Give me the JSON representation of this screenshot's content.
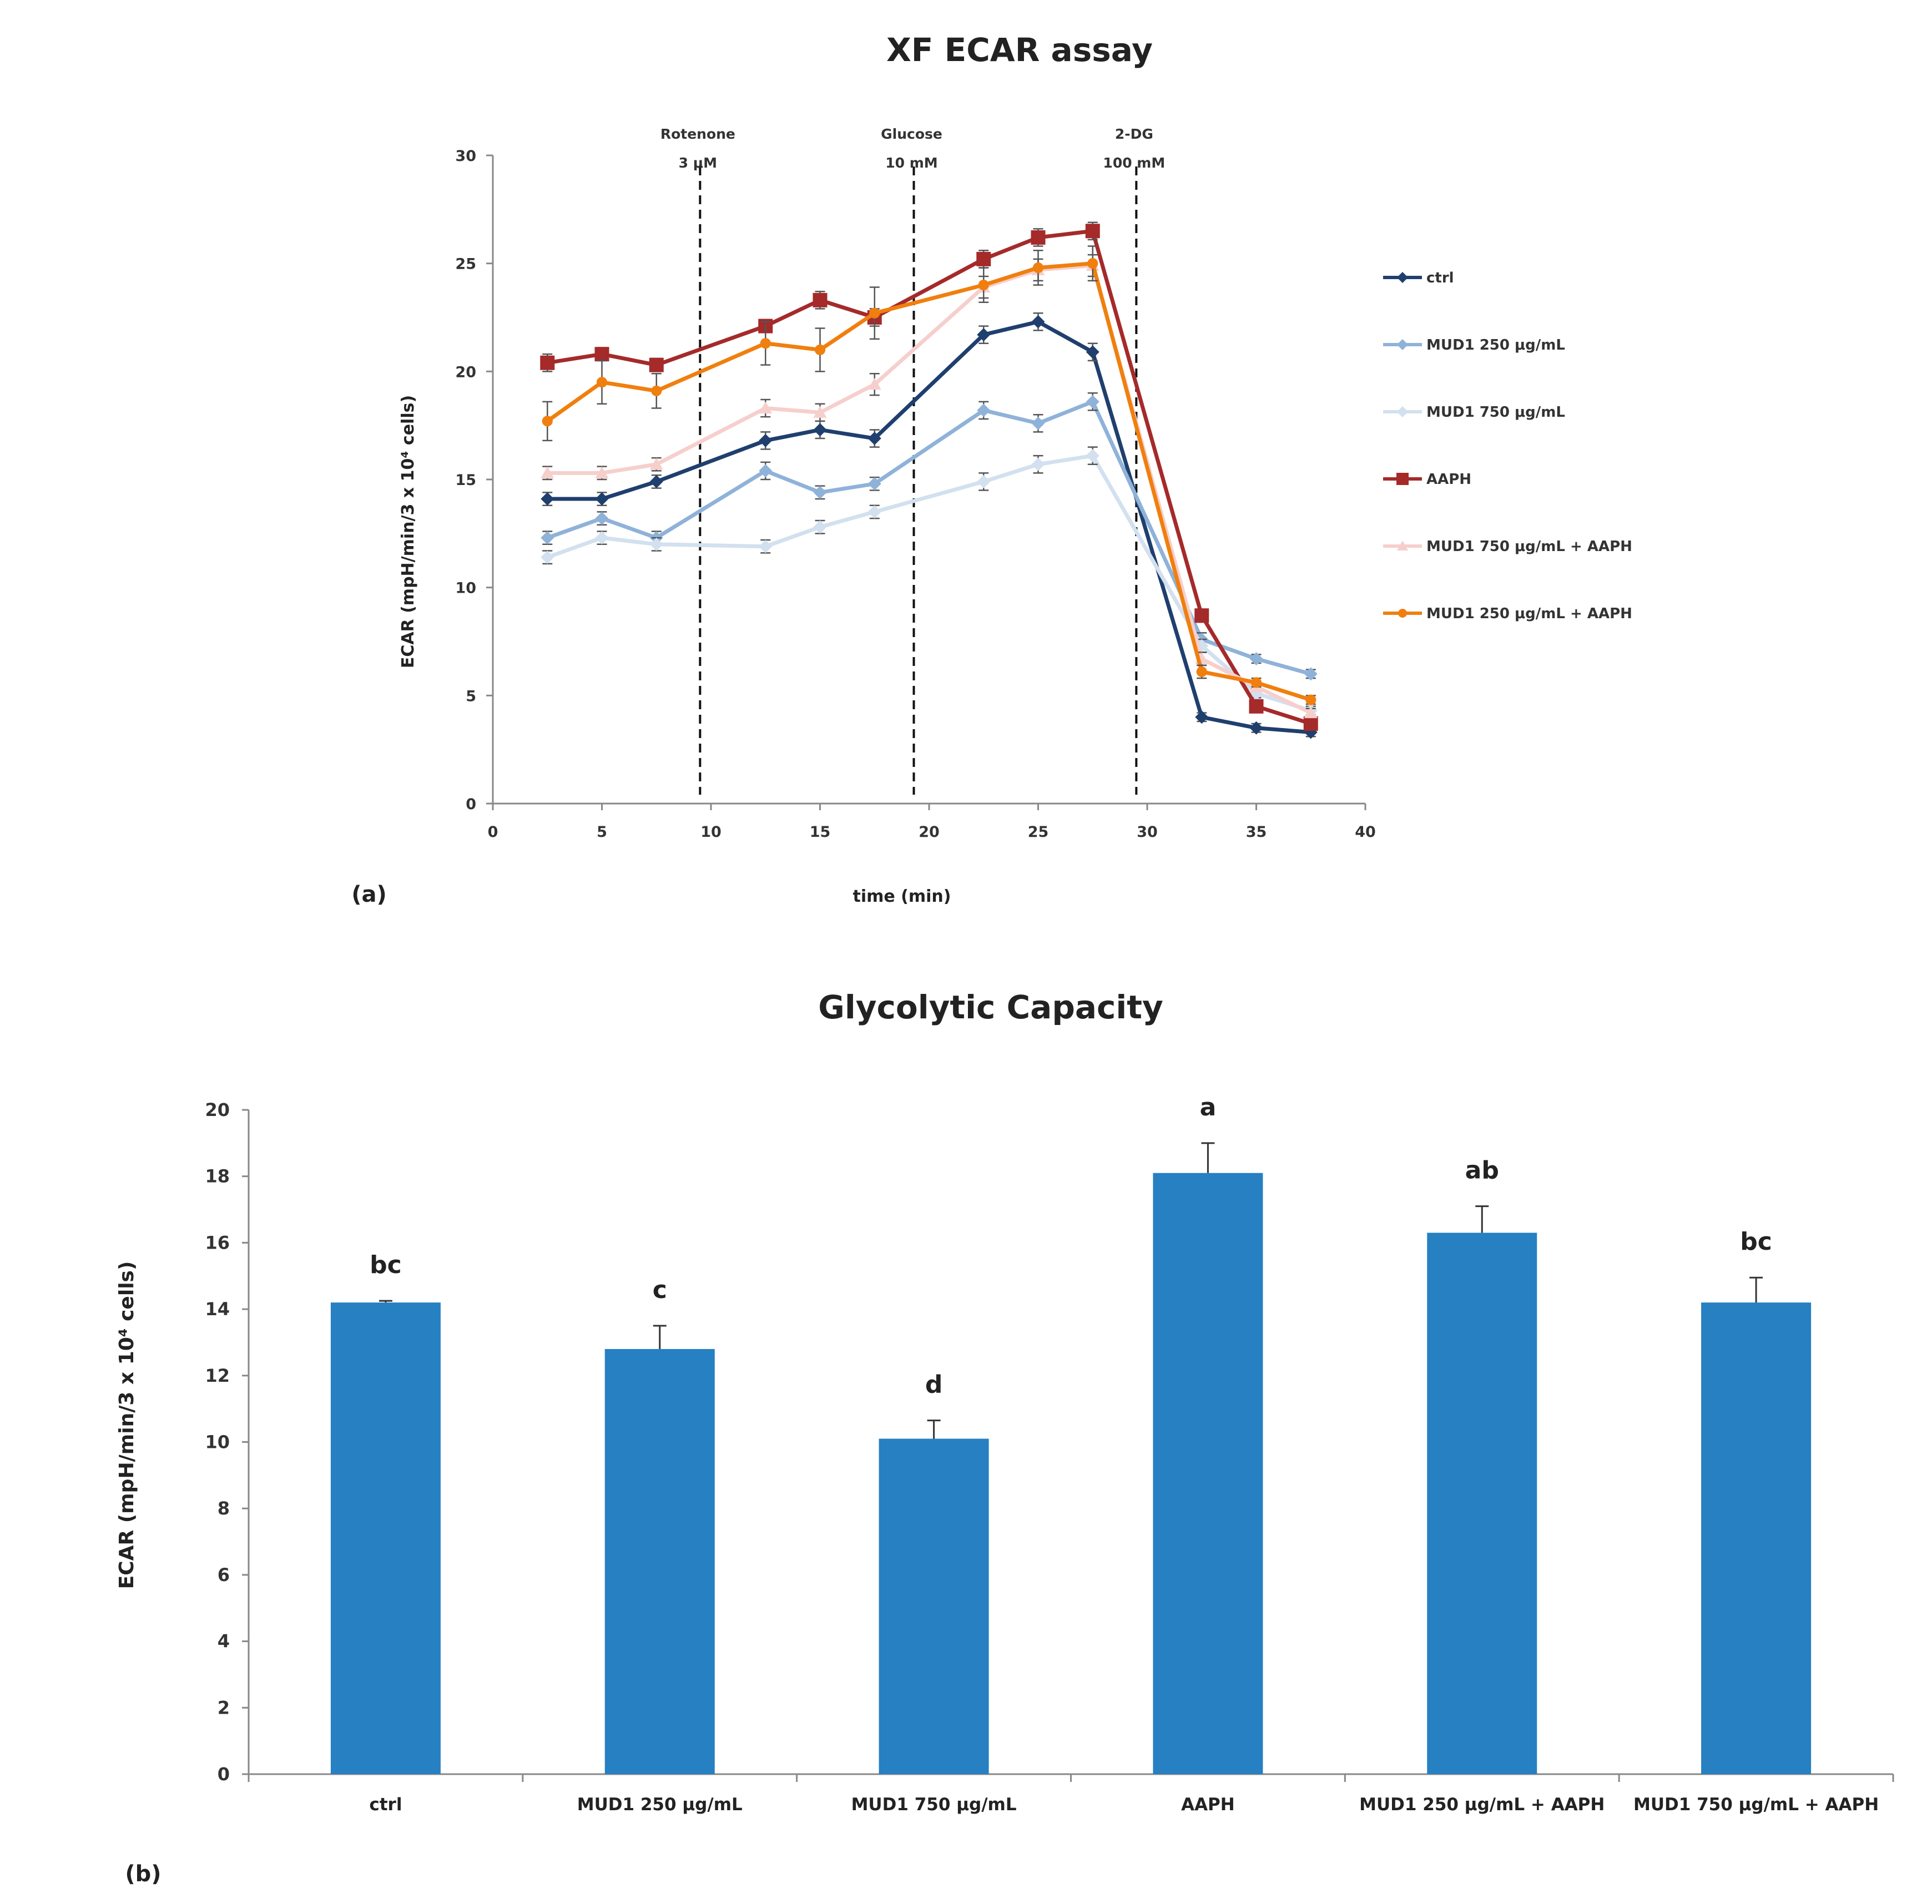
{
  "chart_data": [
    {
      "type": "line",
      "title": "XF ECAR assay",
      "panel_label": "(a)",
      "xlabel": "time (min)",
      "ylabel": "ECAR (mpH/min/3 x 10⁴ cells)",
      "xlim": [
        0,
        40
      ],
      "ylim": [
        0,
        30
      ],
      "xticks": [
        0,
        5,
        10,
        15,
        20,
        25,
        30,
        35,
        40
      ],
      "yticks": [
        0,
        5,
        10,
        15,
        20,
        25,
        30
      ],
      "legend_position": "right",
      "x": [
        2.5,
        5,
        7.5,
        12.5,
        15,
        17.5,
        22.5,
        25,
        27.5,
        32.5,
        35,
        37.5
      ],
      "annotations": [
        {
          "x": 9.5,
          "label": "Rotenone",
          "sublabel": "3 μM"
        },
        {
          "x": 19.3,
          "label": "Glucose",
          "sublabel": "10 mM"
        },
        {
          "x": 29.5,
          "label": "2-DG",
          "sublabel": "100 mM"
        }
      ],
      "series": [
        {
          "name": "ctrl",
          "color": "#1f3f6e",
          "marker": "diamond",
          "values": [
            14.1,
            14.1,
            14.9,
            16.8,
            17.3,
            16.9,
            21.7,
            22.3,
            20.9,
            4.0,
            3.5,
            3.3
          ],
          "errors": [
            0.3,
            0.3,
            0.3,
            0.4,
            0.4,
            0.4,
            0.4,
            0.4,
            0.4,
            0.2,
            0.2,
            0.2
          ]
        },
        {
          "name": "MUD1 250 μg/mL",
          "color": "#8fb2d9",
          "marker": "diamond",
          "values": [
            12.3,
            13.2,
            12.3,
            15.4,
            14.4,
            14.8,
            18.2,
            17.6,
            18.6,
            7.6,
            6.7,
            6.0
          ],
          "errors": [
            0.3,
            0.3,
            0.3,
            0.4,
            0.3,
            0.3,
            0.4,
            0.4,
            0.4,
            0.3,
            0.2,
            0.2
          ]
        },
        {
          "name": "MUD1 750 μg/mL",
          "color": "#d2e0ef",
          "marker": "diamond",
          "values": [
            11.4,
            12.3,
            12.0,
            11.9,
            12.8,
            13.5,
            14.9,
            15.7,
            16.1,
            7.3,
            5.1,
            4.3
          ],
          "errors": [
            0.3,
            0.3,
            0.3,
            0.3,
            0.3,
            0.3,
            0.4,
            0.4,
            0.4,
            0.3,
            0.2,
            0.2
          ]
        },
        {
          "name": "AAPH",
          "color": "#a52a2a",
          "marker": "square",
          "values": [
            20.4,
            20.8,
            20.3,
            22.1,
            23.3,
            22.5,
            25.2,
            26.2,
            26.5,
            8.7,
            4.5,
            3.7
          ],
          "errors": [
            0.4,
            0.3,
            0.3,
            0.3,
            0.4,
            0.4,
            0.4,
            0.4,
            0.4,
            0.3,
            0.2,
            0.2
          ]
        },
        {
          "name": "MUD1 750 μg/mL + AAPH",
          "color": "#f6cfcc",
          "marker": "triangle",
          "values": [
            15.3,
            15.3,
            15.7,
            18.3,
            18.1,
            19.4,
            23.9,
            24.7,
            24.9,
            6.7,
            5.4,
            4.2
          ],
          "errors": [
            0.3,
            0.3,
            0.3,
            0.4,
            0.4,
            0.5,
            0.5,
            0.5,
            0.5,
            0.3,
            0.2,
            0.2
          ]
        },
        {
          "name": "MUD1 250 μg/mL + AAPH",
          "color": "#f07f0e",
          "marker": "circle",
          "values": [
            17.7,
            19.5,
            19.1,
            21.3,
            21.0,
            22.7,
            24.0,
            24.8,
            25.0,
            6.1,
            5.6,
            4.8
          ],
          "errors": [
            0.9,
            1.0,
            0.8,
            1.0,
            1.0,
            1.2,
            0.8,
            0.8,
            0.8,
            0.3,
            0.2,
            0.2
          ]
        }
      ]
    },
    {
      "type": "bar",
      "title": "Glycolytic Capacity",
      "panel_label": "(b)",
      "xlabel": "",
      "ylabel": "ECAR (mpH/min/3  x 10⁴ cells)",
      "ylim": [
        0,
        20
      ],
      "yticks": [
        0,
        2,
        4,
        6,
        8,
        10,
        12,
        14,
        16,
        18,
        20
      ],
      "color": "#2680c2",
      "categories": [
        "ctrl",
        "MUD1 250 μg/mL",
        "MUD1 750 μg/mL",
        "AAPH",
        "MUD1 250 μg/mL + AAPH",
        "MUD1 750 μg/mL + AAPH"
      ],
      "values": [
        14.2,
        12.8,
        10.1,
        18.1,
        16.3,
        14.2
      ],
      "errors": [
        0.05,
        0.7,
        0.55,
        0.9,
        0.8,
        0.75
      ],
      "significance": [
        "bc",
        "c",
        "d",
        "a",
        "ab",
        "bc"
      ]
    }
  ]
}
